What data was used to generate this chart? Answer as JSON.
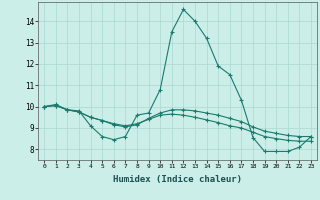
{
  "xlabel": "Humidex (Indice chaleur)",
  "x_ticks": [
    0,
    1,
    2,
    3,
    4,
    5,
    6,
    7,
    8,
    9,
    10,
    11,
    12,
    13,
    14,
    15,
    16,
    17,
    18,
    19,
    20,
    21,
    22,
    23
  ],
  "y_ticks": [
    8,
    9,
    10,
    11,
    12,
    13,
    14
  ],
  "xlim": [
    -0.5,
    23.5
  ],
  "ylim": [
    7.5,
    14.9
  ],
  "background_color": "#cceee8",
  "line_color": "#1a7a6e",
  "grid_color": "#aad8d0",
  "line1_x": [
    0,
    1,
    2,
    3,
    4,
    5,
    6,
    7,
    8,
    9,
    10,
    11,
    12,
    13,
    14,
    15,
    16,
    17,
    18,
    19,
    20,
    21,
    22,
    23
  ],
  "line1_y": [
    10.0,
    10.1,
    9.85,
    9.8,
    9.1,
    8.6,
    8.45,
    8.6,
    9.6,
    9.7,
    10.8,
    13.5,
    14.55,
    14.0,
    13.2,
    11.9,
    11.5,
    10.3,
    8.55,
    7.9,
    7.9,
    7.9,
    8.1,
    8.6
  ],
  "line2_x": [
    0,
    1,
    2,
    3,
    4,
    5,
    6,
    7,
    8,
    9,
    10,
    11,
    12,
    13,
    14,
    15,
    16,
    17,
    18,
    19,
    20,
    21,
    22,
    23
  ],
  "line2_y": [
    10.0,
    10.05,
    9.85,
    9.75,
    9.5,
    9.35,
    9.15,
    9.05,
    9.15,
    9.45,
    9.7,
    9.85,
    9.85,
    9.8,
    9.7,
    9.6,
    9.45,
    9.3,
    9.05,
    8.85,
    8.75,
    8.65,
    8.6,
    8.6
  ],
  "line3_x": [
    0,
    1,
    2,
    3,
    4,
    5,
    6,
    7,
    8,
    9,
    10,
    11,
    12,
    13,
    14,
    15,
    16,
    17,
    18,
    19,
    20,
    21,
    22,
    23
  ],
  "line3_y": [
    10.0,
    10.05,
    9.85,
    9.75,
    9.5,
    9.35,
    9.2,
    9.1,
    9.2,
    9.4,
    9.6,
    9.65,
    9.6,
    9.5,
    9.38,
    9.25,
    9.1,
    9.0,
    8.8,
    8.6,
    8.5,
    8.42,
    8.38,
    8.38
  ]
}
